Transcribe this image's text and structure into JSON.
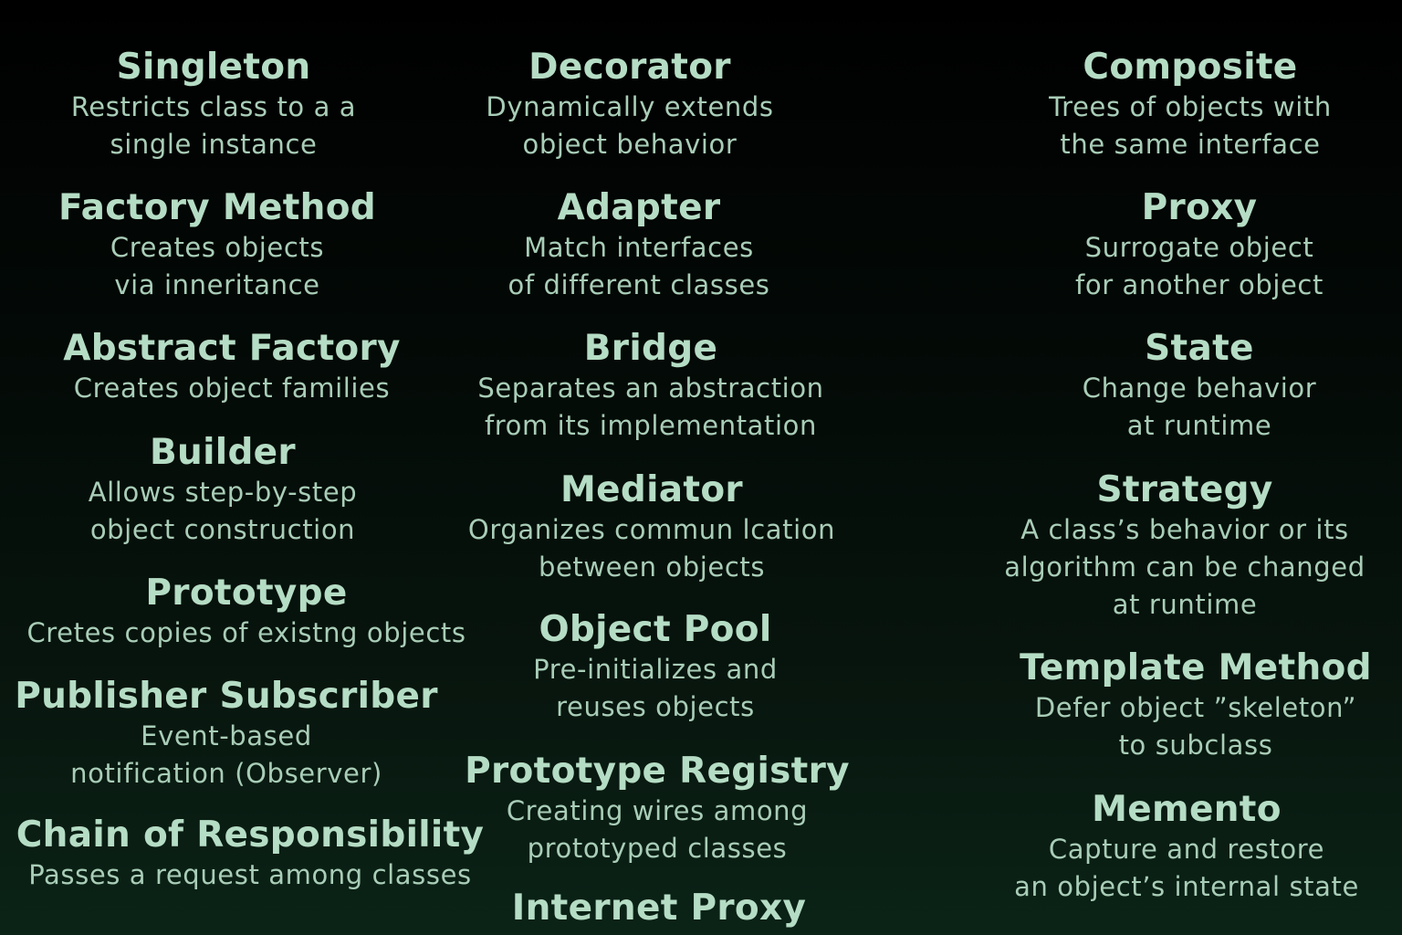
{
  "patterns": [
    {
      "id": "singleton",
      "title": "Singleton",
      "desc": [
        "Restricts class to a a",
        "single instance"
      ]
    },
    {
      "id": "factory-method",
      "title": "Factory Method",
      "desc": [
        "Creates objects",
        "via inneritance"
      ]
    },
    {
      "id": "abstract-factory",
      "title": "Abstract Factory",
      "desc": [
        "Creates object families"
      ]
    },
    {
      "id": "builder",
      "title": "Builder",
      "desc": [
        "Allows step-by-step",
        "object construction"
      ]
    },
    {
      "id": "prototype",
      "title": "Prototype",
      "desc": [
        "Cretes copies of existng objects"
      ]
    },
    {
      "id": "publisher-subscriber",
      "title": "Publisher Subscriber",
      "desc": [
        "Event-based",
        "notification (Observer)"
      ]
    },
    {
      "id": "chain-of-responsibility",
      "title": "Chain of Responsibility",
      "desc": [
        "Passes a request among classes"
      ]
    },
    {
      "id": "decorator",
      "title": "Decorator",
      "desc": [
        "Dynamically extends",
        "object behavior"
      ]
    },
    {
      "id": "adapter",
      "title": "Adapter",
      "desc": [
        "Match interfaces",
        "of different classes"
      ]
    },
    {
      "id": "bridge",
      "title": "Bridge",
      "desc": [
        "Separates an abstraction",
        "from its implementation"
      ]
    },
    {
      "id": "mediator",
      "title": "Mediator",
      "desc": [
        "Organizes commun lcation",
        "between objects"
      ]
    },
    {
      "id": "object-pool",
      "title": "Object Pool",
      "desc": [
        "Pre-initializes and",
        "reuses objects"
      ]
    },
    {
      "id": "prototype-registry",
      "title": "Prototype Registry",
      "desc": [
        "Creating wires among",
        "prototyped classes"
      ]
    },
    {
      "id": "internet-proxy",
      "title": "Internet Proxy",
      "desc": []
    },
    {
      "id": "composite",
      "title": "Composite",
      "desc": [
        "Trees of objects with",
        "the same interface"
      ]
    },
    {
      "id": "proxy",
      "title": "Proxy",
      "desc": [
        "Surrogate object",
        "for another object"
      ]
    },
    {
      "id": "state",
      "title": "State",
      "desc": [
        "Change behavior",
        "at runtime"
      ]
    },
    {
      "id": "strategy",
      "title": "Strategy",
      "desc": [
        "A class’s behavior  or its",
        "algorithm can be changed",
        "at runtime"
      ]
    },
    {
      "id": "template-method",
      "title": "Template Method",
      "desc": [
        "Defer object ”skeleton”",
        "to subclass"
      ]
    },
    {
      "id": "memento",
      "title": "Memento",
      "desc": [
        "Capture and restore",
        "an object’s internal state"
      ]
    }
  ]
}
